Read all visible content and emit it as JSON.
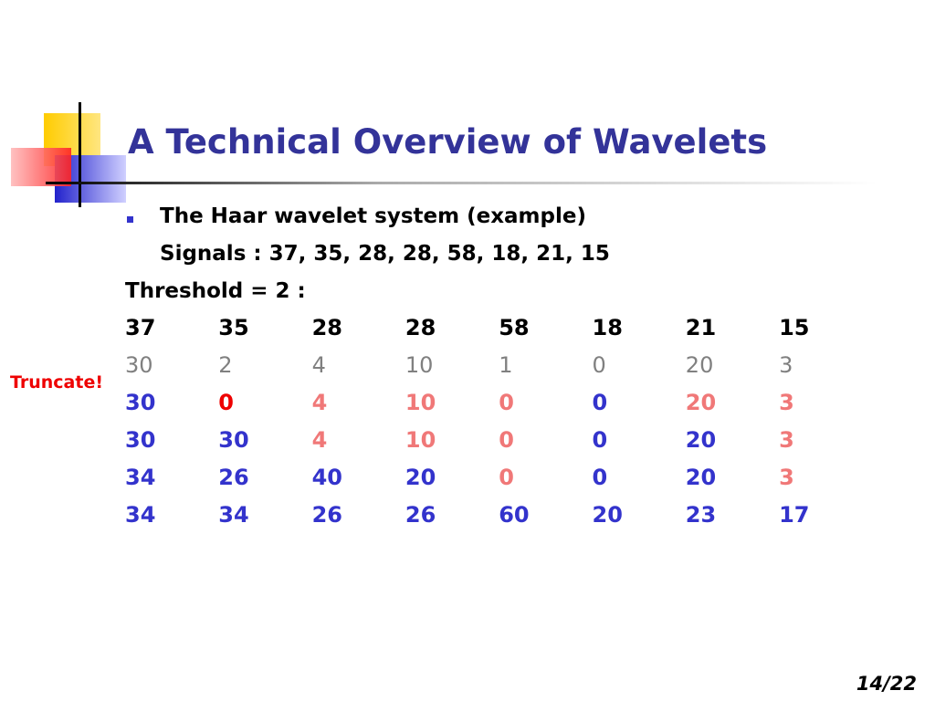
{
  "header": {
    "title": "A Technical Overview of Wavelets"
  },
  "body": {
    "bullet": "The Haar wavelet system (example)",
    "signals": "Signals : 37, 35, 28, 28, 58, 18, 21, 15",
    "threshold": "Threshold = 2 :",
    "note": "Truncate!"
  },
  "table": {
    "rows": [
      [
        37,
        35,
        28,
        28,
        58,
        18,
        21,
        15
      ],
      [
        30,
        2,
        4,
        10,
        1,
        0,
        20,
        3
      ],
      [
        30,
        0,
        4,
        10,
        0,
        0,
        20,
        3
      ],
      [
        30,
        30,
        4,
        10,
        0,
        0,
        20,
        3
      ],
      [
        34,
        26,
        40,
        20,
        0,
        0,
        20,
        3
      ],
      [
        34,
        34,
        26,
        26,
        60,
        20,
        23,
        17
      ]
    ]
  },
  "footer": {
    "page": "14/22"
  }
}
